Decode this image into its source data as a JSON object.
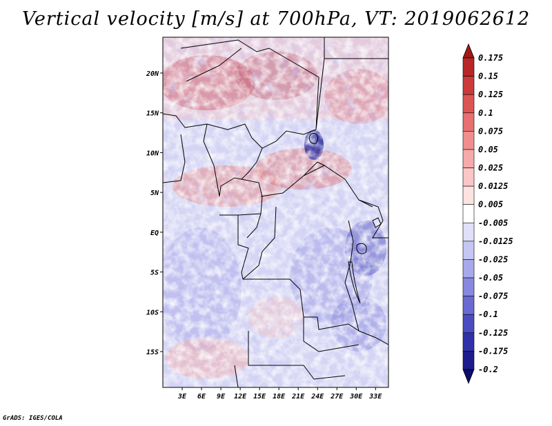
{
  "title": "Vertical velocity [m/s] at 700hPa, VT: 2019062612",
  "credit": "GrADS: IGES/COLA",
  "map": {
    "lat_ticks": [
      "20N",
      "15N",
      "10N",
      "5N",
      "EQ",
      "5S",
      "10S",
      "15S"
    ],
    "lat_values": [
      20,
      15,
      10,
      5,
      0,
      -5,
      -10,
      -15
    ],
    "lon_ticks": [
      "3E",
      "6E",
      "9E",
      "12E",
      "15E",
      "18E",
      "21E",
      "24E",
      "27E",
      "30E",
      "33E"
    ],
    "lon_values": [
      3,
      6,
      9,
      12,
      15,
      18,
      21,
      24,
      27,
      30,
      33
    ],
    "lat_range": [
      -19.5,
      24.5
    ],
    "lon_range": [
      0,
      35
    ]
  },
  "colorbar": {
    "labels": [
      "0.175",
      "0.15",
      "0.125",
      "0.1",
      "0.075",
      "0.05",
      "0.025",
      "0.0125",
      "0.005",
      "-0.005",
      "-0.0125",
      "-0.025",
      "-0.05",
      "-0.075",
      "-0.1",
      "-0.125",
      "-0.175",
      "-0.2"
    ],
    "colors": [
      "#a01818",
      "#b82626",
      "#cc3a3a",
      "#dc5555",
      "#e87070",
      "#f08e8e",
      "#f6aaaa",
      "#fac6c6",
      "#fde2e2",
      "#ffffff",
      "#e0e0fa",
      "#c6c6f4",
      "#a8a8ec",
      "#8888e0",
      "#6a6ad2",
      "#4c4cc2",
      "#3030aa",
      "#1c1c8c",
      "#0c0c6a"
    ]
  }
}
